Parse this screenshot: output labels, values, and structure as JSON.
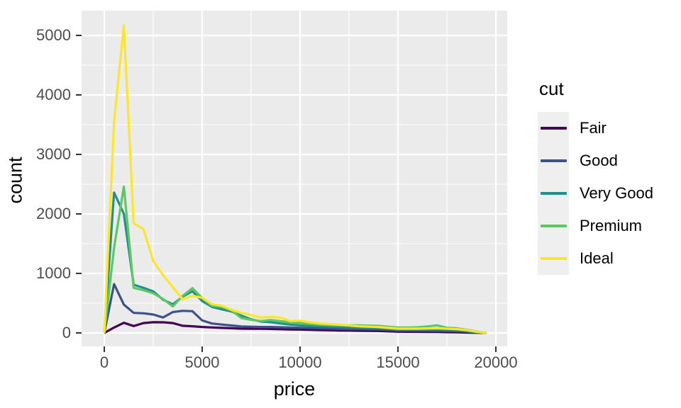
{
  "chart_data": {
    "type": "line",
    "subtype": "frequency-polygon",
    "title": "",
    "xlabel": "price",
    "ylabel": "count",
    "legend_title": "cut",
    "legend_position": "right",
    "grid": "major and minor white gridlines on grey panel",
    "panel_bg": "#EBEBEB",
    "legend_key_bg": "#EFEFEF",
    "tick_label_color": "#4d4d4d",
    "tick_mark_color": "#333333",
    "xlim": [
      -1160,
      20580
    ],
    "ylim": [
      -225,
      5415
    ],
    "x_ticks": [
      0,
      5000,
      10000,
      15000,
      20000
    ],
    "x_tick_labels": [
      "0",
      "5000",
      "10000",
      "15000",
      "20000"
    ],
    "x_minor_ticks": [
      2500,
      7500,
      12500,
      17500
    ],
    "y_ticks": [
      0,
      1000,
      2000,
      3000,
      4000,
      5000
    ],
    "y_tick_labels": [
      "0",
      "1000",
      "2000",
      "3000",
      "4000",
      "5000"
    ],
    "y_minor_ticks": [
      500,
      1500,
      2500,
      3500,
      4500
    ],
    "x": [
      0,
      500,
      1000,
      1500,
      2000,
      2500,
      3000,
      3500,
      4000,
      4500,
      5000,
      5500,
      6000,
      6500,
      7000,
      7500,
      8000,
      8500,
      9000,
      9500,
      10000,
      10500,
      11000,
      11500,
      12000,
      12500,
      13000,
      13500,
      14000,
      14500,
      15000,
      15500,
      16000,
      16500,
      17000,
      17500,
      18000,
      18500,
      19000,
      19500
    ],
    "series": [
      {
        "name": "Fair",
        "color": "#440154",
        "values": [
          0,
          90,
          170,
          115,
          165,
          180,
          178,
          165,
          120,
          112,
          100,
          92,
          85,
          78,
          72,
          70,
          70,
          67,
          62,
          58,
          56,
          52,
          48,
          44,
          40,
          38,
          36,
          34,
          32,
          26,
          20,
          19,
          18,
          16,
          15,
          12,
          10,
          6,
          2,
          0
        ]
      },
      {
        "name": "Good",
        "color": "#3B528B",
        "values": [
          0,
          820,
          476,
          337,
          330,
          310,
          260,
          350,
          372,
          365,
          210,
          158,
          140,
          125,
          110,
          105,
          100,
          100,
          95,
          90,
          87,
          83,
          79,
          73,
          67,
          64,
          62,
          61,
          60,
          50,
          40,
          39,
          38,
          37,
          36,
          33,
          30,
          20,
          8,
          0
        ]
      },
      {
        "name": "Very Good",
        "color": "#21908C",
        "values": [
          0,
          2360,
          2000,
          810,
          758,
          698,
          560,
          480,
          610,
          700,
          536,
          437,
          397,
          360,
          290,
          230,
          190,
          180,
          159,
          139,
          127,
          119,
          111,
          105,
          99,
          92,
          86,
          82,
          79,
          70,
          60,
          58,
          56,
          58,
          60,
          52,
          48,
          30,
          12,
          0
        ]
      },
      {
        "name": "Premium",
        "color": "#5DC863",
        "values": [
          0,
          1430,
          2460,
          758,
          718,
          667,
          571,
          445,
          620,
          752,
          587,
          456,
          437,
          377,
          250,
          220,
          200,
          218,
          198,
          179,
          167,
          151,
          139,
          133,
          127,
          127,
          127,
          123,
          119,
          105,
          90,
          92,
          95,
          110,
          127,
          87,
          79,
          55,
          25,
          0
        ]
      },
      {
        "name": "Ideal",
        "color": "#FDE725",
        "values": [
          0,
          3550,
          5170,
          1845,
          1745,
          1210,
          970,
          770,
          565,
          625,
          590,
          484,
          456,
          389,
          337,
          300,
          258,
          270,
          258,
          200,
          206,
          179,
          159,
          149,
          139,
          125,
          111,
          105,
          99,
          85,
          71,
          71,
          71,
          75,
          79,
          71,
          63,
          48,
          20,
          0
        ]
      }
    ]
  }
}
